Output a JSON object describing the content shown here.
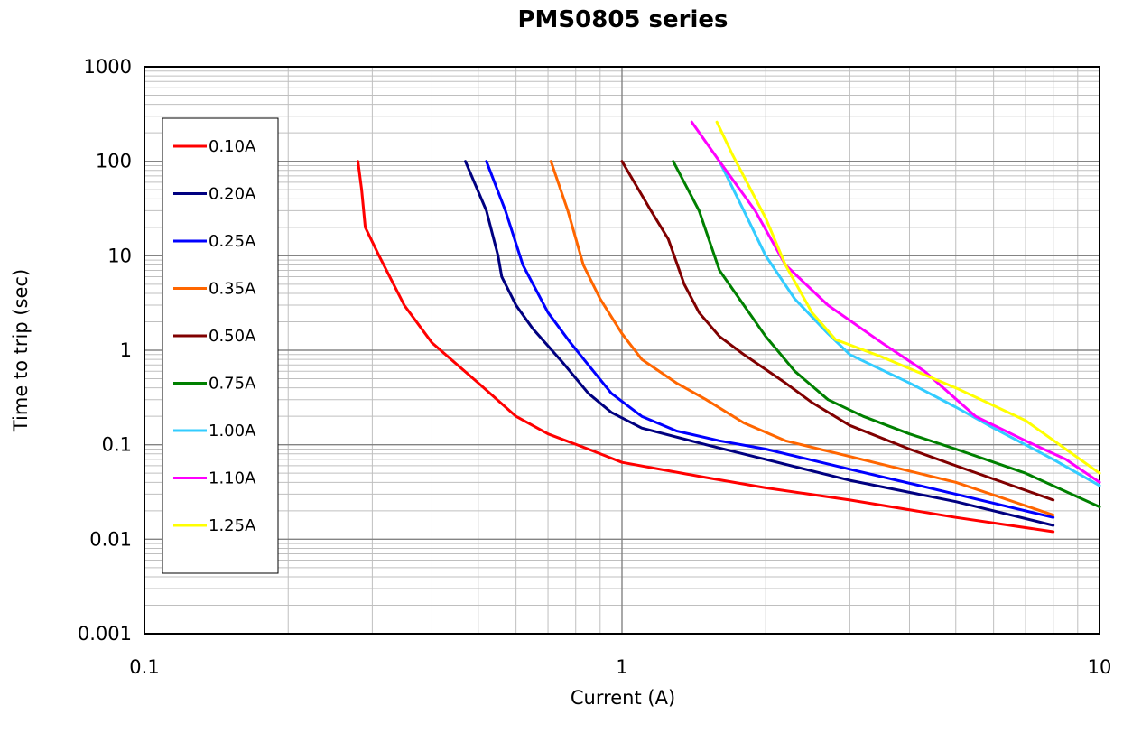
{
  "chart_data": {
    "type": "line",
    "title": "PMS0805 series",
    "xlabel": "Current (A)",
    "ylabel": "Time to trip (sec)",
    "x_scale": "log",
    "y_scale": "log",
    "xlim": [
      0.1,
      10
    ],
    "ylim": [
      0.001,
      1000
    ],
    "x_ticks": [
      "0.1",
      "1",
      "10"
    ],
    "y_ticks": [
      "1000",
      "100",
      "10",
      "1",
      "0.1",
      "0.01",
      "0.001"
    ],
    "grid": true,
    "legend_position": "left",
    "series": [
      {
        "name": "0.10A",
        "color": "#ff0000",
        "points": [
          [
            0.28,
            100
          ],
          [
            0.285,
            50
          ],
          [
            0.29,
            20
          ],
          [
            0.31,
            10
          ],
          [
            0.35,
            3
          ],
          [
            0.4,
            1.2
          ],
          [
            0.5,
            0.45
          ],
          [
            0.6,
            0.2
          ],
          [
            0.7,
            0.13
          ],
          [
            0.85,
            0.09
          ],
          [
            1,
            0.065
          ],
          [
            1.5,
            0.045
          ],
          [
            2,
            0.035
          ],
          [
            3,
            0.026
          ],
          [
            5,
            0.017
          ],
          [
            8,
            0.012
          ]
        ]
      },
      {
        "name": "0.20A",
        "color": "#000080",
        "points": [
          [
            0.47,
            100
          ],
          [
            0.52,
            30
          ],
          [
            0.55,
            10
          ],
          [
            0.56,
            6
          ],
          [
            0.6,
            3
          ],
          [
            0.65,
            1.7
          ],
          [
            0.75,
            0.75
          ],
          [
            0.85,
            0.35
          ],
          [
            0.95,
            0.22
          ],
          [
            1.1,
            0.15
          ],
          [
            1.5,
            0.1
          ],
          [
            2,
            0.07
          ],
          [
            3,
            0.042
          ],
          [
            5,
            0.025
          ],
          [
            8,
            0.014
          ]
        ]
      },
      {
        "name": "0.25A",
        "color": "#0000ff",
        "points": [
          [
            0.52,
            100
          ],
          [
            0.57,
            30
          ],
          [
            0.62,
            8
          ],
          [
            0.7,
            2.5
          ],
          [
            0.78,
            1.2
          ],
          [
            0.85,
            0.7
          ],
          [
            0.95,
            0.35
          ],
          [
            1.1,
            0.2
          ],
          [
            1.3,
            0.14
          ],
          [
            1.6,
            0.11
          ],
          [
            2,
            0.09
          ],
          [
            3,
            0.055
          ],
          [
            5,
            0.03
          ],
          [
            8,
            0.017
          ]
        ]
      },
      {
        "name": "0.35A",
        "color": "#ff6600",
        "points": [
          [
            0.71,
            100
          ],
          [
            0.77,
            30
          ],
          [
            0.83,
            8
          ],
          [
            0.9,
            3.5
          ],
          [
            1,
            1.5
          ],
          [
            1.1,
            0.8
          ],
          [
            1.3,
            0.45
          ],
          [
            1.5,
            0.3
          ],
          [
            1.8,
            0.17
          ],
          [
            2.2,
            0.11
          ],
          [
            3,
            0.075
          ],
          [
            5,
            0.04
          ],
          [
            8,
            0.018
          ]
        ]
      },
      {
        "name": "0.50A",
        "color": "#800000",
        "points": [
          [
            1,
            100
          ],
          [
            1.15,
            30
          ],
          [
            1.25,
            15
          ],
          [
            1.35,
            5
          ],
          [
            1.45,
            2.5
          ],
          [
            1.6,
            1.4
          ],
          [
            1.8,
            0.9
          ],
          [
            2.2,
            0.45
          ],
          [
            2.5,
            0.28
          ],
          [
            3,
            0.16
          ],
          [
            4,
            0.09
          ],
          [
            5,
            0.06
          ],
          [
            8,
            0.026
          ]
        ]
      },
      {
        "name": "0.75A",
        "color": "#008000",
        "points": [
          [
            1.28,
            100
          ],
          [
            1.45,
            30
          ],
          [
            1.6,
            7
          ],
          [
            1.8,
            3
          ],
          [
            2,
            1.4
          ],
          [
            2.3,
            0.6
          ],
          [
            2.7,
            0.3
          ],
          [
            3.2,
            0.2
          ],
          [
            4,
            0.13
          ],
          [
            5,
            0.09
          ],
          [
            7,
            0.05
          ],
          [
            10,
            0.022
          ]
        ]
      },
      {
        "name": "1.00A",
        "color": "#33ccff",
        "points": [
          [
            1.6,
            100
          ],
          [
            1.8,
            30
          ],
          [
            2,
            10
          ],
          [
            2.3,
            3.5
          ],
          [
            2.7,
            1.5
          ],
          [
            3,
            0.9
          ],
          [
            4,
            0.45
          ],
          [
            5,
            0.25
          ],
          [
            6,
            0.15
          ],
          [
            8,
            0.07
          ],
          [
            10,
            0.037
          ]
        ]
      },
      {
        "name": "1.10A",
        "color": "#ff00ff",
        "points": [
          [
            1.4,
            260
          ],
          [
            1.6,
            100
          ],
          [
            1.9,
            30
          ],
          [
            2.2,
            8
          ],
          [
            2.7,
            3
          ],
          [
            3.5,
            1.2
          ],
          [
            4.3,
            0.6
          ],
          [
            5.5,
            0.2
          ],
          [
            7,
            0.11
          ],
          [
            8.5,
            0.07
          ],
          [
            10,
            0.04
          ]
        ]
      },
      {
        "name": "1.25A",
        "color": "#ffff00",
        "points": [
          [
            1.58,
            260
          ],
          [
            1.7,
            120
          ],
          [
            2,
            25
          ],
          [
            2.2,
            8
          ],
          [
            2.5,
            2.5
          ],
          [
            2.8,
            1.3
          ],
          [
            3.5,
            0.85
          ],
          [
            5,
            0.4
          ],
          [
            7,
            0.18
          ],
          [
            10,
            0.05
          ]
        ]
      }
    ]
  }
}
